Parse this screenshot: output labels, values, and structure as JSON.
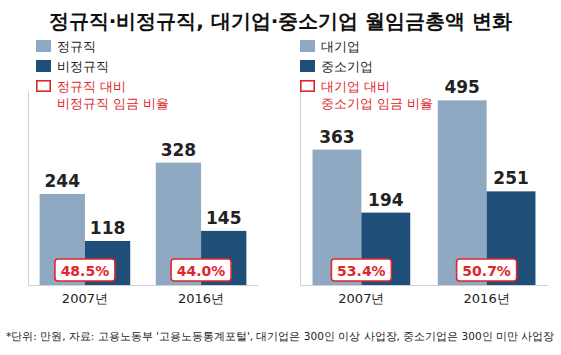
{
  "title": "정규직·비정규직, 대기업·중소기업 월임금총액 변화",
  "note": "*단위: 만원, 자료: 고용노동부 '고용노동통계포털', 대기업은 300인 이상 사업장, 중소기업은 300인 미만 사업장",
  "chart_data": [
    {
      "type": "bar",
      "categories": [
        "2007년",
        "2016년"
      ],
      "series": [
        {
          "name": "정규직",
          "color": "#8ea9c1",
          "values": [
            244,
            328
          ]
        },
        {
          "name": "비정규직",
          "color": "#1f4e79",
          "values": [
            118,
            145
          ]
        }
      ],
      "ylim": [
        0,
        520
      ],
      "tick_labels": "x",
      "data_labels": true,
      "legend": "top-left",
      "ratios": {
        "label_lines": [
          "정규직 대비",
          "비정규직 임금 비율"
        ],
        "color": "#e0262c",
        "values": [
          48.5,
          44.0
        ],
        "value_labels": [
          "48.5%",
          "44.0%"
        ]
      }
    },
    {
      "type": "bar",
      "categories": [
        "2007년",
        "2016년"
      ],
      "series": [
        {
          "name": "대기업",
          "color": "#8ea9c1",
          "values": [
            363,
            495
          ]
        },
        {
          "name": "중소기업",
          "color": "#1f4e79",
          "values": [
            194,
            251
          ]
        }
      ],
      "ylim": [
        0,
        520
      ],
      "tick_labels": "x",
      "data_labels": true,
      "legend": "top-left",
      "ratios": {
        "label_lines": [
          "대기업 대비",
          "중소기업 임금 비율"
        ],
        "color": "#e0262c",
        "values": [
          53.4,
          50.7
        ],
        "value_labels": [
          "53.4%",
          "50.7%"
        ]
      }
    }
  ]
}
